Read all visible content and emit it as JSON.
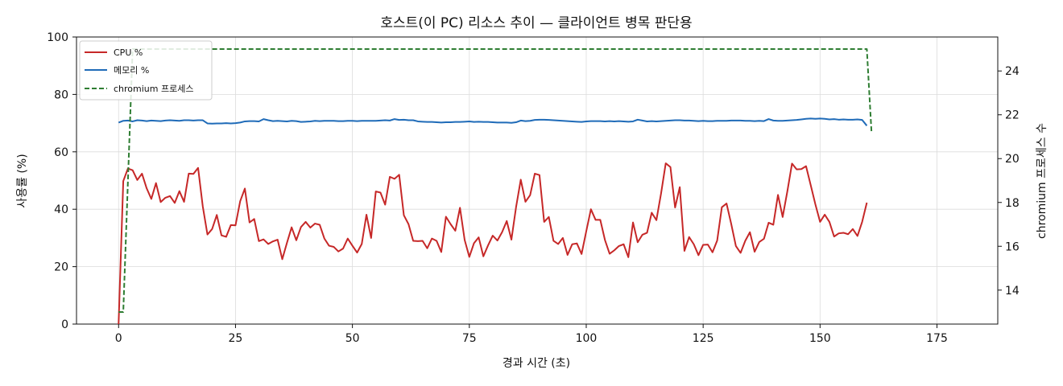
{
  "chart_data": {
    "type": "line",
    "title": "호스트(이 PC) 리소스 추이 — 클라이언트 병목 판단용",
    "xlabel": "경과 시간 (초)",
    "ylabel": "사용률 (%)",
    "y2label": "chromium 프로세스 수",
    "xlim": [
      -9,
      188
    ],
    "ylim": [
      0,
      100
    ],
    "y2lim": [
      12.45,
      25.55
    ],
    "xticks": [
      0,
      25,
      50,
      75,
      100,
      125,
      150,
      175
    ],
    "yticks": [
      0,
      20,
      40,
      60,
      80,
      100
    ],
    "y2ticks": [
      14,
      16,
      18,
      20,
      22,
      24
    ],
    "grid": true,
    "legend_position": "top-left",
    "series": [
      {
        "name": "CPU %",
        "axis": "left",
        "color": "#c62828",
        "style": "solid",
        "values": [
          0.0,
          49.8,
          54.2,
          53.6,
          50.2,
          52.4,
          47.3,
          43.6,
          49.1,
          42.5,
          44.0,
          44.6,
          42.2,
          46.3,
          42.6,
          52.4,
          52.3,
          54.4,
          41.0,
          31.2,
          33.1,
          38.0,
          30.9,
          30.4,
          34.5,
          34.4,
          42.8,
          47.2,
          35.4,
          36.6,
          28.9,
          29.5,
          27.9,
          28.8,
          29.4,
          22.6,
          28.3,
          33.7,
          29.2,
          33.8,
          35.6,
          33.6,
          35.0,
          34.6,
          29.8,
          27.3,
          26.9,
          25.3,
          26.3,
          29.8,
          27.3,
          24.9,
          27.9,
          38.1,
          30.0,
          46.2,
          45.8,
          41.6,
          51.3,
          50.6,
          52.0,
          37.9,
          34.8,
          29.0,
          28.9,
          29.0,
          26.4,
          29.8,
          29.0,
          25.1,
          37.4,
          34.8,
          32.5,
          40.5,
          29.3,
          23.4,
          28.2,
          30.2,
          23.6,
          27.4,
          30.8,
          29.1,
          32.0,
          35.9,
          29.4,
          40.8,
          50.3,
          42.6,
          44.9,
          52.4,
          51.9,
          35.6,
          37.3,
          29.0,
          27.9,
          30.0,
          24.1,
          27.8,
          28.1,
          24.4,
          32.3,
          40.0,
          36.3,
          36.3,
          29.3,
          24.5,
          25.7,
          27.2,
          27.8,
          23.3,
          35.4,
          28.5,
          31.1,
          31.8,
          38.8,
          36.2,
          45.5,
          56.0,
          54.7,
          40.6,
          47.7,
          25.5,
          30.3,
          27.8,
          24.0,
          27.6,
          27.7,
          25.0,
          29.1,
          40.7,
          42.0,
          34.9,
          27.2,
          24.8,
          29.0,
          32.0,
          25.2,
          28.6,
          29.7,
          35.3,
          34.6,
          45.0,
          37.3,
          46.2,
          55.9,
          53.9,
          54.0,
          55.0,
          48.4,
          41.7,
          35.6,
          38.1,
          35.6,
          30.5,
          31.6,
          31.8,
          31.3,
          33.1,
          30.7,
          35.6,
          42.3
        ]
      },
      {
        "name": "메모리 %",
        "axis": "left",
        "color": "#1f6bb8",
        "style": "solid",
        "values": [
          70.2,
          70.8,
          70.9,
          70.6,
          71.0,
          70.9,
          70.7,
          70.9,
          70.8,
          70.7,
          70.9,
          71.0,
          70.9,
          70.8,
          71.0,
          71.0,
          70.9,
          71.0,
          71.0,
          69.9,
          69.8,
          69.9,
          69.9,
          70.0,
          69.9,
          70.0,
          70.2,
          70.6,
          70.7,
          70.7,
          70.6,
          71.4,
          71.0,
          70.7,
          70.8,
          70.7,
          70.6,
          70.8,
          70.7,
          70.4,
          70.5,
          70.6,
          70.8,
          70.7,
          70.8,
          70.8,
          70.8,
          70.7,
          70.7,
          70.8,
          70.8,
          70.7,
          70.8,
          70.8,
          70.8,
          70.8,
          70.9,
          71.0,
          70.9,
          71.4,
          71.1,
          71.2,
          71.0,
          71.0,
          70.6,
          70.5,
          70.4,
          70.4,
          70.3,
          70.2,
          70.3,
          70.3,
          70.4,
          70.4,
          70.5,
          70.6,
          70.4,
          70.5,
          70.4,
          70.4,
          70.3,
          70.2,
          70.2,
          70.2,
          70.1,
          70.3,
          70.9,
          70.7,
          70.8,
          71.1,
          71.2,
          71.2,
          71.1,
          71.0,
          70.9,
          70.8,
          70.7,
          70.6,
          70.5,
          70.4,
          70.6,
          70.7,
          70.7,
          70.7,
          70.6,
          70.7,
          70.6,
          70.7,
          70.6,
          70.5,
          70.6,
          71.2,
          70.9,
          70.6,
          70.7,
          70.6,
          70.7,
          70.8,
          70.9,
          71.0,
          71.0,
          70.9,
          70.9,
          70.8,
          70.7,
          70.8,
          70.7,
          70.7,
          70.8,
          70.8,
          70.8,
          70.9,
          70.9,
          70.9,
          70.8,
          70.8,
          70.7,
          70.8,
          70.7,
          71.4,
          70.9,
          70.8,
          70.8,
          70.9,
          71.0,
          71.1,
          71.3,
          71.5,
          71.6,
          71.5,
          71.6,
          71.5,
          71.3,
          71.4,
          71.2,
          71.3,
          71.2,
          71.2,
          71.3,
          71.1,
          69.1
        ]
      },
      {
        "name": "chromium 프로세스",
        "axis": "right",
        "color": "#2e7d32",
        "style": "dashed",
        "values": [
          13,
          13,
          19,
          25,
          25,
          25,
          25,
          25,
          25,
          25,
          25,
          25,
          25,
          25,
          25,
          25,
          25,
          25,
          25,
          25,
          25,
          25,
          25,
          25,
          25,
          25,
          25,
          25,
          25,
          25,
          25,
          25,
          25,
          25,
          25,
          25,
          25,
          25,
          25,
          25,
          25,
          25,
          25,
          25,
          25,
          25,
          25,
          25,
          25,
          25,
          25,
          25,
          25,
          25,
          25,
          25,
          25,
          25,
          25,
          25,
          25,
          25,
          25,
          25,
          25,
          25,
          25,
          25,
          25,
          25,
          25,
          25,
          25,
          25,
          25,
          25,
          25,
          25,
          25,
          25,
          25,
          25,
          25,
          25,
          25,
          25,
          25,
          25,
          25,
          25,
          25,
          25,
          25,
          25,
          25,
          25,
          25,
          25,
          25,
          25,
          25,
          25,
          25,
          25,
          25,
          25,
          25,
          25,
          25,
          25,
          25,
          25,
          25,
          25,
          25,
          25,
          25,
          25,
          25,
          25,
          25,
          25,
          25,
          25,
          25,
          25,
          25,
          25,
          25,
          25,
          25,
          25,
          25,
          25,
          25,
          25,
          25,
          25,
          25,
          25,
          25,
          25,
          25,
          25,
          25,
          25,
          25,
          25,
          25,
          25,
          25,
          25,
          25,
          25,
          25,
          25,
          25,
          25,
          25,
          25,
          25,
          21.2
        ]
      }
    ]
  }
}
